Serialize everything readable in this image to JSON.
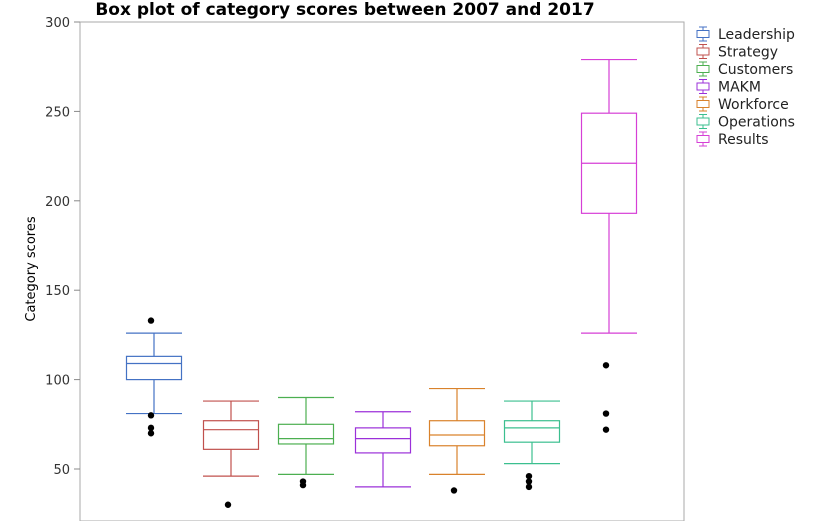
{
  "chart_data": {
    "type": "box",
    "title": "Box plot of category scores between 2007 and 2017",
    "xlabel": "",
    "ylabel": "Category scores",
    "ylim": [
      25,
      300
    ],
    "yticks": [
      50,
      100,
      150,
      200,
      250,
      300
    ],
    "grid": false,
    "legend": "right",
    "series": [
      {
        "name": "Leadership",
        "color": "#4472c4",
        "whisker_low": 81,
        "q1": 100,
        "median": 109,
        "q3": 113,
        "whisker_high": 126,
        "outliers": [
          133,
          80,
          73,
          70
        ]
      },
      {
        "name": "Strategy",
        "color": "#c0504d",
        "whisker_low": 46,
        "q1": 61,
        "median": 72,
        "q3": 77,
        "whisker_high": 88,
        "outliers": [
          30
        ]
      },
      {
        "name": "Customers",
        "color": "#4caf50",
        "whisker_low": 47,
        "q1": 64,
        "median": 67,
        "q3": 75,
        "whisker_high": 90,
        "outliers": [
          43,
          41
        ]
      },
      {
        "name": "MAKM",
        "color": "#9b30d9",
        "whisker_low": 40,
        "q1": 59,
        "median": 67,
        "q3": 73,
        "whisker_high": 82,
        "outliers": []
      },
      {
        "name": "Workforce",
        "color": "#d9822b",
        "whisker_low": 47,
        "q1": 63,
        "median": 69,
        "q3": 77,
        "whisker_high": 95,
        "outliers": [
          38
        ]
      },
      {
        "name": "Operations",
        "color": "#3bbf8f",
        "whisker_low": 53,
        "q1": 65,
        "median": 73,
        "q3": 77,
        "whisker_high": 88,
        "outliers": [
          46,
          43,
          40
        ]
      },
      {
        "name": "Results",
        "color": "#d63fd6",
        "whisker_low": 126,
        "q1": 193,
        "median": 221,
        "q3": 249,
        "whisker_high": 279,
        "outliers": [
          108,
          81,
          72
        ]
      }
    ]
  }
}
